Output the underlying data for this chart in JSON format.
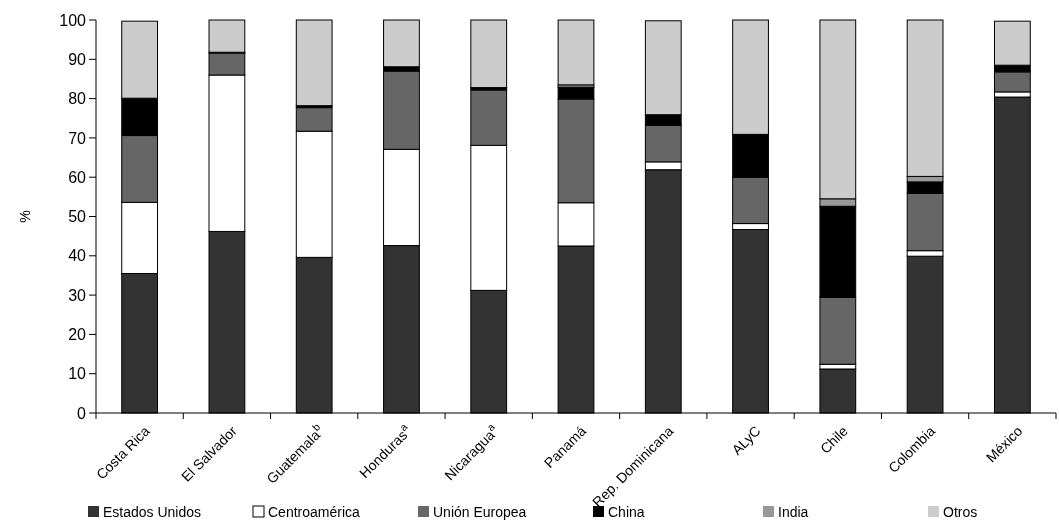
{
  "chart_data": {
    "type": "bar",
    "stacked": true,
    "ylabel": "%",
    "ylim": [
      0,
      100
    ],
    "yticks": [
      0,
      10,
      20,
      30,
      40,
      50,
      60,
      70,
      80,
      90,
      100
    ],
    "grid": false,
    "legend": "bottom",
    "categories": [
      "Costa Rica",
      "El Salvador",
      "Guatemala$^{b}$",
      "Honduras$^{a}$",
      "Nicaragua$^{a}$",
      "Panamá",
      "Rep. Dominicana",
      "ALyC",
      "Chile",
      "Colombia",
      "México"
    ],
    "series": [
      {
        "name": "Estados Unidos",
        "color": "#333333",
        "values": [
          35.5,
          46.2,
          39.6,
          42.6,
          31.2,
          42.5,
          61.9,
          46.7,
          11.2,
          39.9,
          80.4
        ]
      },
      {
        "name": "Centroamérica",
        "color": "#ffffff",
        "values": [
          18.1,
          39.8,
          32.1,
          24.5,
          36.9,
          11.0,
          2.0,
          1.5,
          1.2,
          1.4,
          1.3
        ]
      },
      {
        "name": "Unión Europea",
        "color": "#666666",
        "values": [
          17.0,
          5.6,
          6.0,
          19.9,
          14.1,
          26.4,
          9.3,
          11.8,
          17.0,
          14.6,
          5.1
        ]
      },
      {
        "name": "China",
        "color": "#000000",
        "values": [
          9.5,
          0.2,
          0.5,
          1.1,
          0.6,
          3.0,
          2.7,
          10.9,
          23.2,
          2.9,
          1.7
        ]
      },
      {
        "name": "India",
        "color": "#999999",
        "values": [
          null,
          0,
          0,
          0,
          0,
          0.6,
          null,
          0,
          1.9,
          1.4,
          null
        ]
      },
      {
        "name": "Otros",
        "color": "#cccccc",
        "values": [
          19.6,
          8.2,
          21.8,
          11.9,
          17.2,
          16.5,
          23.9,
          29.1,
          45.5,
          39.8,
          11.2
        ]
      }
    ]
  }
}
